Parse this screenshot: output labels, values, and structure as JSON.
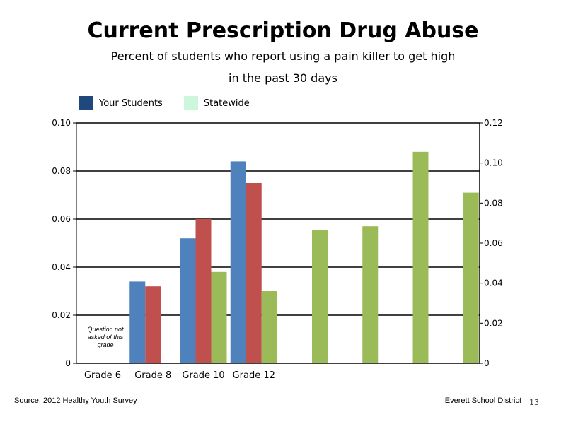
{
  "slide": {
    "title": "Current Prescription Drug Abuse",
    "subtitle": "Percent of students who report using a pain killer to get high in the past 30 days",
    "note": "Question not asked of this grade",
    "source": "Source: 2012 Healthy Youth Survey",
    "organization": "Everett School District",
    "page_number": "13"
  },
  "legend": [
    {
      "label": "Your Students",
      "color": "#1f497d"
    },
    {
      "label": "Statewide",
      "color": "#ccf7dc"
    }
  ],
  "chart_data": {
    "type": "bar",
    "categories": [
      "Grade 6",
      "Grade 8",
      "Grade 10",
      "Grade 12",
      "",
      "",
      "",
      ""
    ],
    "ylim": [
      0,
      0.1
    ],
    "yticks": [
      "0",
      "0.02",
      "0.04",
      "0.06",
      "0.08",
      "0.10"
    ],
    "y2lim": [
      0,
      0.12
    ],
    "y2ticks": [
      "0",
      "0.02",
      "0.04",
      "0.06",
      "0.08",
      "0.10",
      "0.12"
    ],
    "grid": true,
    "series": [
      {
        "color": "#4f81bd",
        "axis": "left",
        "values": [
          null,
          0.034,
          0.052,
          0.084,
          null,
          null,
          null,
          null
        ]
      },
      {
        "color": "#c0504d",
        "axis": "left",
        "values": [
          null,
          0.032,
          0.06,
          0.075,
          null,
          null,
          null,
          null
        ]
      },
      {
        "color": "#9bbb59",
        "axis": "left",
        "values": [
          null,
          null,
          0.038,
          0.03,
          0.0555,
          0.057,
          0.088,
          0.071
        ]
      }
    ]
  }
}
